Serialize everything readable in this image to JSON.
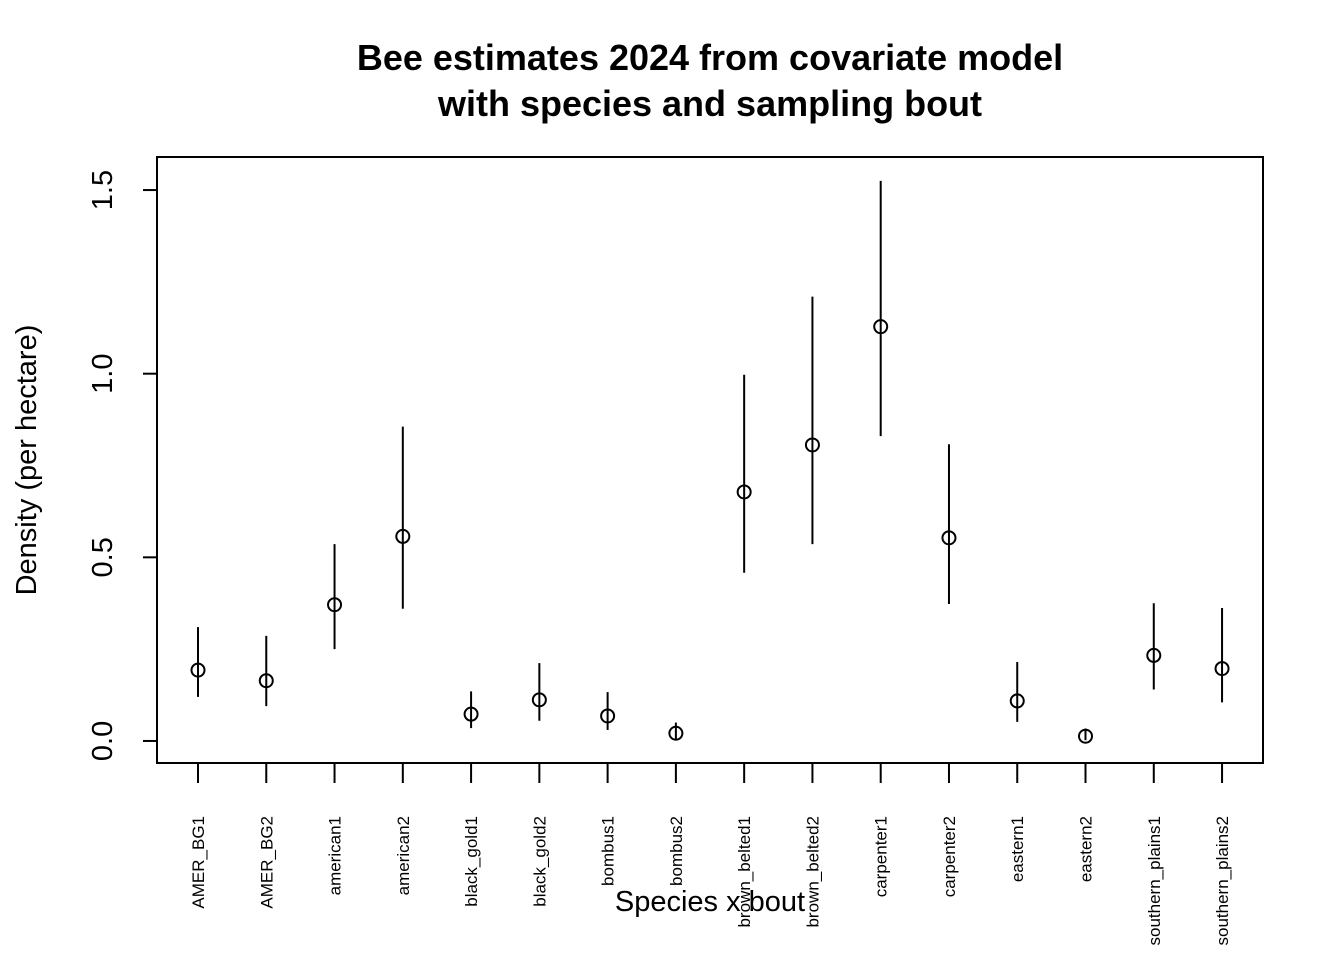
{
  "chart_data": {
    "type": "scatter",
    "title_lines": [
      "Bee estimates 2024 from covariate model",
      "with species and sampling bout"
    ],
    "xlabel": "Species x bout",
    "ylabel": "Density (per hectare)",
    "ylim": [
      -0.06,
      1.59
    ],
    "yticks": [
      "0.0",
      "0.5",
      "1.0",
      "1.5"
    ],
    "grid": false,
    "categories": [
      "AMER_BG1",
      "AMER_BG2",
      "american1",
      "american2",
      "black_gold1",
      "black_gold2",
      "bombus1",
      "bombus2",
      "brown_belted1",
      "brown_belted2",
      "carpenter1",
      "carpenter2",
      "eastern1",
      "eastern2",
      "southern_plains1",
      "southern_plains2"
    ],
    "series": [
      {
        "estimate": [
          0.193,
          0.164,
          0.371,
          0.557,
          0.073,
          0.112,
          0.068,
          0.021,
          0.678,
          0.806,
          1.128,
          0.553,
          0.109,
          0.013,
          0.233,
          0.197
        ],
        "lower": [
          0.12,
          0.095,
          0.25,
          0.36,
          0.035,
          0.055,
          0.03,
          0.005,
          0.458,
          0.536,
          0.83,
          0.373,
          0.052,
          0.002,
          0.14,
          0.105
        ],
        "upper": [
          0.31,
          0.286,
          0.536,
          0.856,
          0.135,
          0.212,
          0.133,
          0.05,
          0.997,
          1.21,
          1.525,
          0.808,
          0.215,
          0.034,
          0.375,
          0.362
        ]
      }
    ]
  }
}
